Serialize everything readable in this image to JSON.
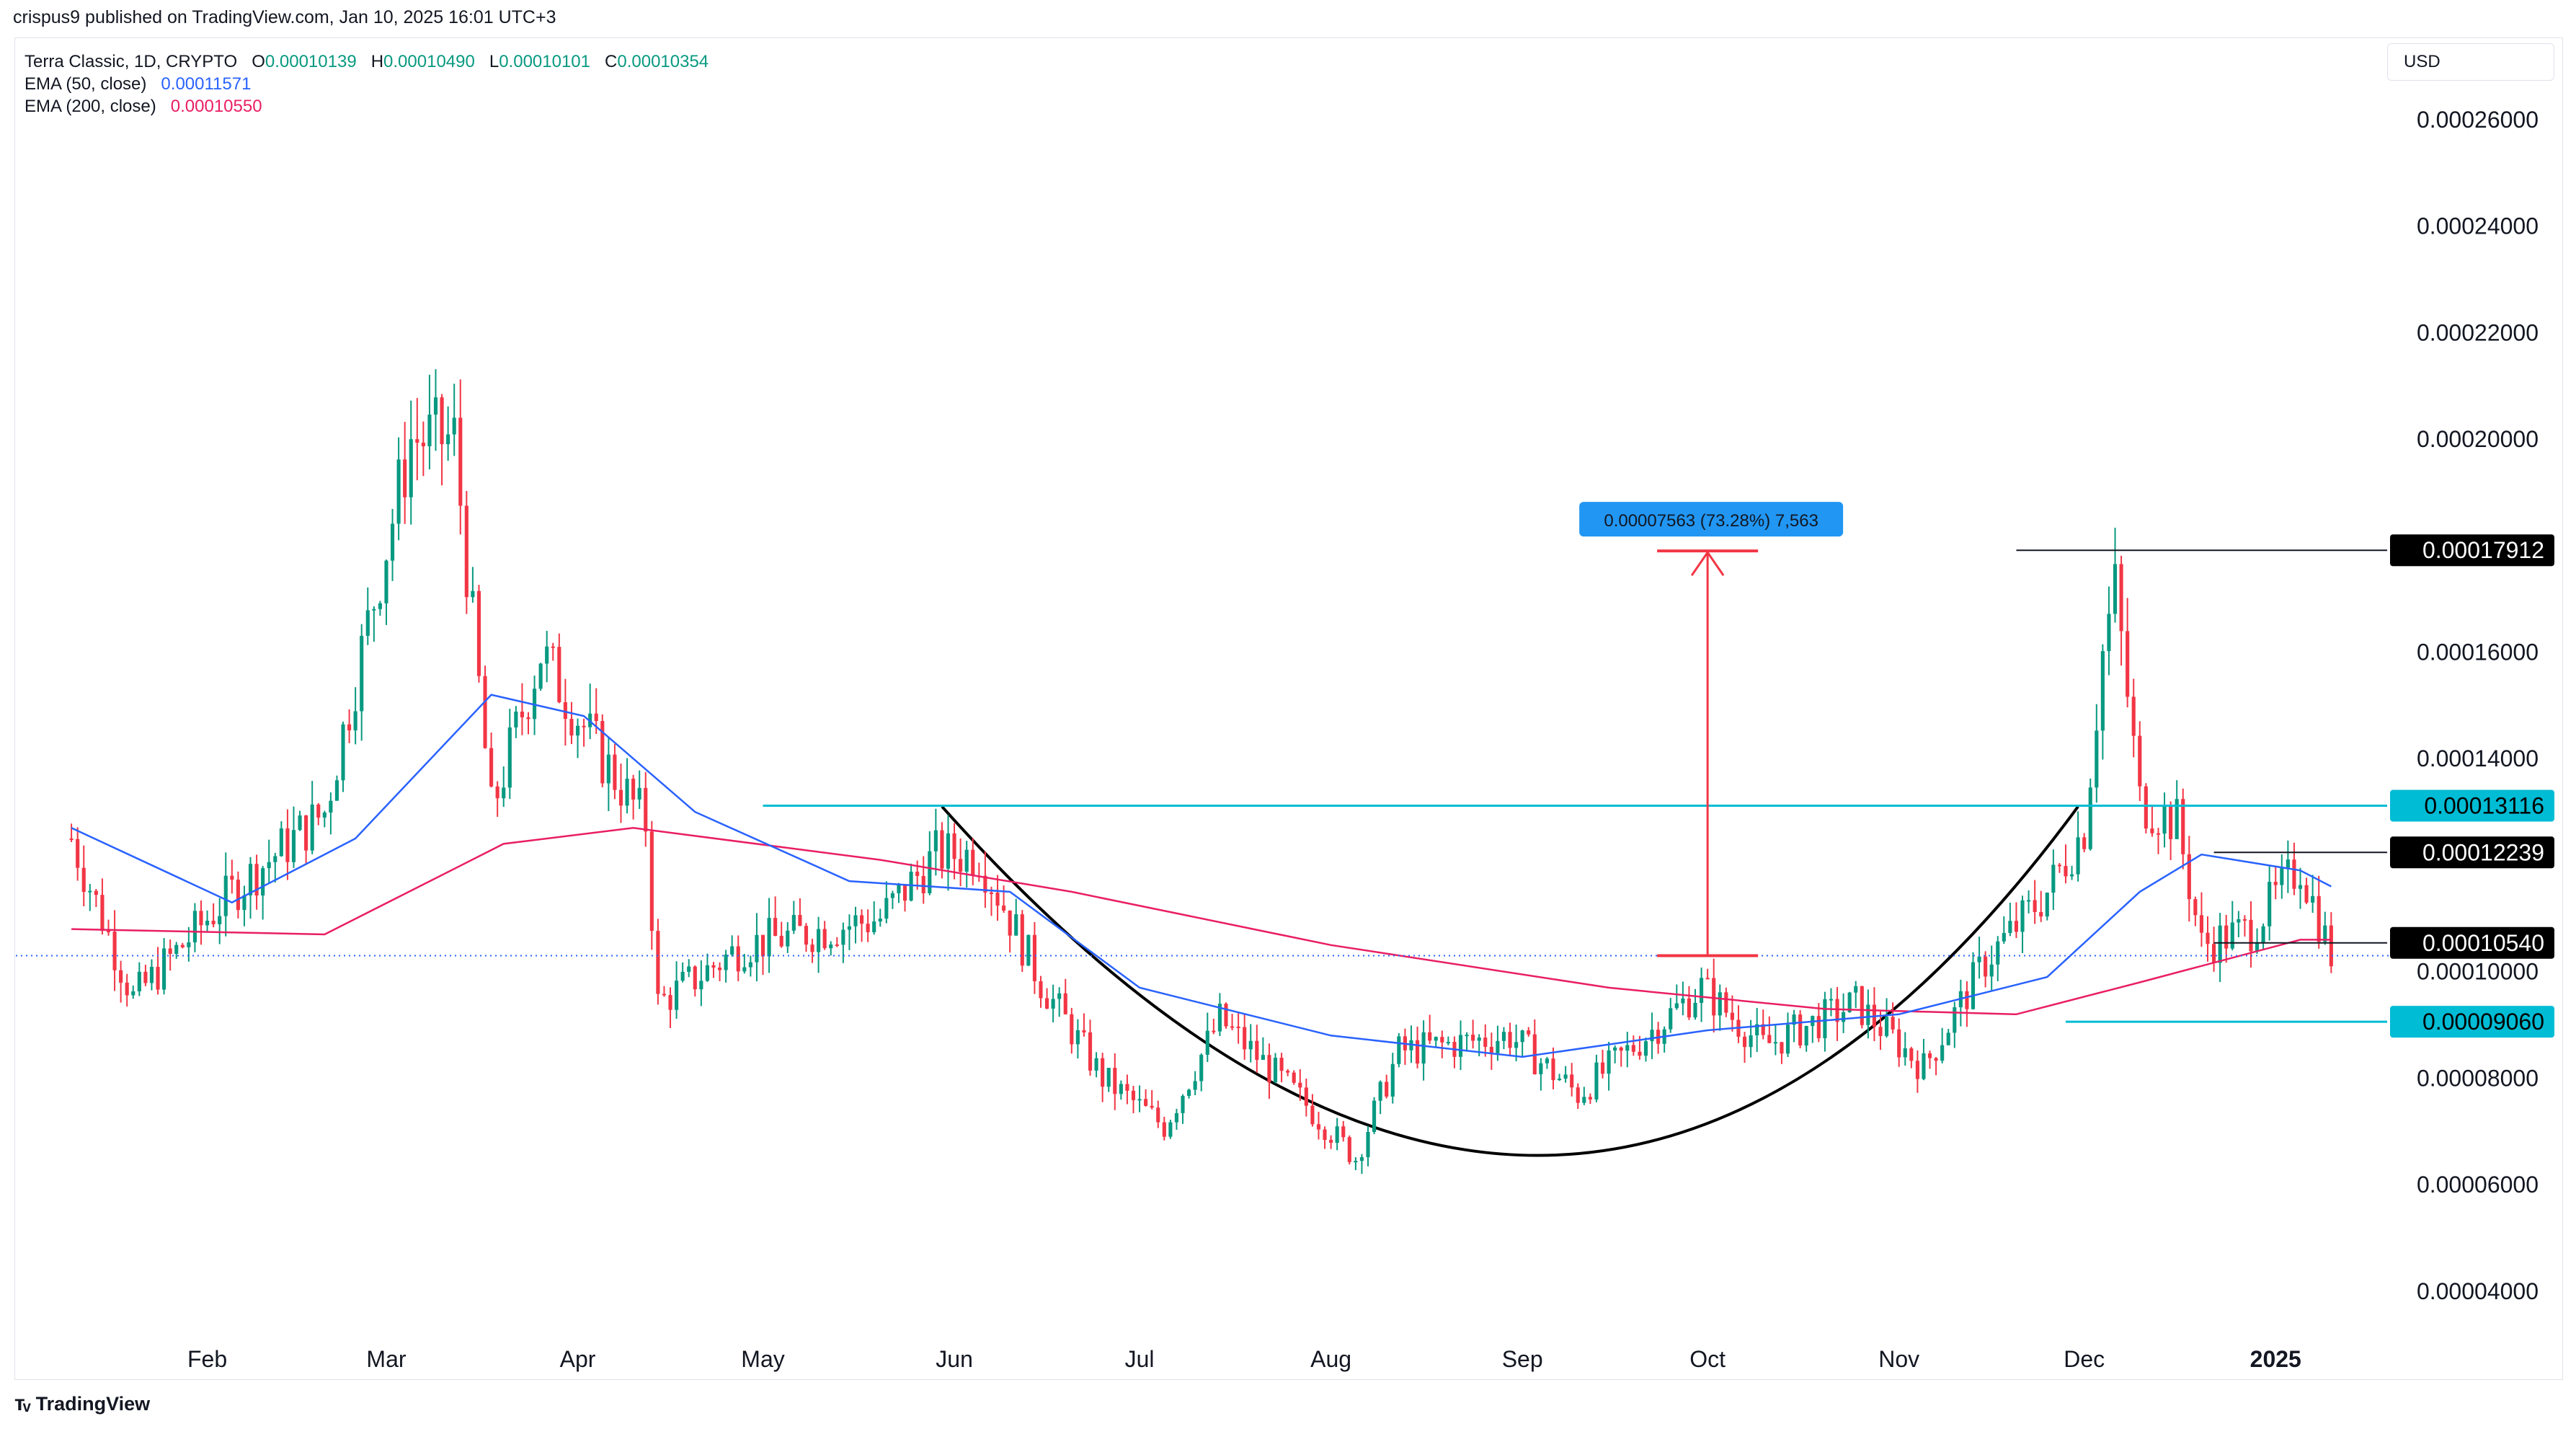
{
  "publisher": "crispus9 published on TradingView.com, Jan 10, 2025 16:01 UTC+3",
  "currency": "USD",
  "legend": {
    "symbol": "Terra Classic, 1D, CRYPTO",
    "o_label": "O",
    "o_value": "0.00010139",
    "h_label": "H",
    "h_value": "0.00010490",
    "l_label": "L",
    "l_value": "0.00010101",
    "c_label": "C",
    "c_value": "0.00010354",
    "ema50_label": "EMA (50, close)",
    "ema50_value": "0.00011571",
    "ema200_label": "EMA (200, close)",
    "ema200_value": "0.00010550"
  },
  "footer": {
    "brand": "TradingView",
    "logo_icon": "tradingview-logo-icon"
  },
  "colors": {
    "up": "#089981",
    "down": "#f23645",
    "ema50": "#2962ff",
    "ema200": "#e91e63",
    "teal": "#00bcd4",
    "measure": "#f23645",
    "measure_label": "#2196f3"
  },
  "chart_data": {
    "type": "candlestick",
    "x_ticks": [
      "Feb",
      "Mar",
      "Apr",
      "May",
      "Jun",
      "Jul",
      "Aug",
      "Sep",
      "Oct",
      "Nov",
      "Dec",
      "2025"
    ],
    "y_ticks": [
      "0.00026000",
      "0.00024000",
      "0.00022000",
      "0.00020000",
      "0.00016000",
      "0.00014000",
      "0.00010000",
      "0.00008000",
      "0.00006000",
      "0.00004000"
    ],
    "y_range": [
      3.2e-05,
      0.000275
    ],
    "ohlc_key_points": [
      [
        "2024-01-10",
        0.000125
      ],
      [
        "2024-01-20",
        9.5e-05
      ],
      [
        "2024-02-05",
        0.000115
      ],
      [
        "2024-02-20",
        0.00013
      ],
      [
        "2024-03-01",
        0.00018
      ],
      [
        "2024-03-05",
        0.0002
      ],
      [
        "2024-03-12",
        0.0002
      ],
      [
        "2024-03-18",
        0.00013
      ],
      [
        "2024-03-26",
        0.00016
      ],
      [
        "2024-04-05",
        0.00014
      ],
      [
        "2024-04-12",
        0.000128
      ],
      [
        "2024-04-14",
        9.4e-05
      ],
      [
        "2024-04-28",
        0.000105
      ],
      [
        "2024-05-20",
        0.00011
      ],
      [
        "2024-05-29",
        0.000122
      ],
      [
        "2024-06-05",
        0.000122
      ],
      [
        "2024-06-15",
        9.8e-05
      ],
      [
        "2024-06-25",
        8e-05
      ],
      [
        "2024-07-05",
        7.1e-05
      ],
      [
        "2024-07-14",
        9.1e-05
      ],
      [
        "2024-07-28",
        7.5e-05
      ],
      [
        "2024-08-05",
        6.5e-05
      ],
      [
        "2024-08-12",
        8.5e-05
      ],
      [
        "2024-08-30",
        8.8e-05
      ],
      [
        "2024-09-10",
        7.7e-05
      ],
      [
        "2024-09-30",
        9.7e-05
      ],
      [
        "2024-10-10",
        8.6e-05
      ],
      [
        "2024-10-25",
        9.4e-05
      ],
      [
        "2024-11-05",
        8.2e-05
      ],
      [
        "2024-11-15",
        0.000102
      ],
      [
        "2024-11-25",
        0.000115
      ],
      [
        "2024-12-01",
        0.000127
      ],
      [
        "2024-12-04",
        0.00016
      ],
      [
        "2024-12-06",
        0.000172
      ],
      [
        "2024-12-10",
        0.000132
      ],
      [
        "2024-12-16",
        0.000128
      ],
      [
        "2024-12-20",
        0.000105
      ],
      [
        "2024-12-28",
        0.000108
      ],
      [
        "2025-01-05",
        0.00012
      ],
      [
        "2025-01-10",
        0.000103
      ]
    ],
    "ema50": [
      [
        "2024-01-10",
        0.000127
      ],
      [
        "2024-02-05",
        0.000113
      ],
      [
        "2024-02-25",
        0.000125
      ],
      [
        "2024-03-18",
        0.000152
      ],
      [
        "2024-04-02",
        0.000148
      ],
      [
        "2024-04-20",
        0.00013
      ],
      [
        "2024-05-15",
        0.000117
      ],
      [
        "2024-06-10",
        0.000115
      ],
      [
        "2024-07-01",
        9.7e-05
      ],
      [
        "2024-08-01",
        8.8e-05
      ],
      [
        "2024-09-01",
        8.4e-05
      ],
      [
        "2024-10-01",
        8.9e-05
      ],
      [
        "2024-11-01",
        9.2e-05
      ],
      [
        "2024-11-25",
        9.9e-05
      ],
      [
        "2024-12-10",
        0.000115
      ],
      [
        "2024-12-20",
        0.000122
      ],
      [
        "2025-01-05",
        0.000119
      ],
      [
        "2025-01-10",
        0.000116
      ]
    ],
    "ema200": [
      [
        "2024-01-10",
        0.000108
      ],
      [
        "2024-02-20",
        0.000107
      ],
      [
        "2024-03-20",
        0.000124
      ],
      [
        "2024-04-10",
        0.000127
      ],
      [
        "2024-05-20",
        0.000121
      ],
      [
        "2024-06-20",
        0.000115
      ],
      [
        "2024-08-01",
        0.000105
      ],
      [
        "2024-09-15",
        9.7e-05
      ],
      [
        "2024-10-20",
        9.3e-05
      ],
      [
        "2024-11-20",
        9.2e-05
      ],
      [
        "2024-12-10",
        9.8e-05
      ],
      [
        "2025-01-05",
        0.000106
      ],
      [
        "2025-01-10",
        0.000106
      ]
    ],
    "price_levels": [
      {
        "value": 0.00017912,
        "label": "0.00017912",
        "style": "black"
      },
      {
        "value": 0.00013116,
        "label": "0.00013116",
        "style": "teal"
      },
      {
        "value": 0.00012239,
        "label": "0.00012239",
        "style": "black"
      },
      {
        "value": 0.0001054,
        "label": "0.00010540",
        "style": "black"
      },
      {
        "value": 9.06e-05,
        "label": "0.00009060",
        "style": "teal"
      }
    ],
    "current_price_level": 0.000103,
    "measurement": {
      "label": "0.00007563 (73.28%) 7,563",
      "from": 0.000103,
      "to": 0.000179
    },
    "annotations": [
      "cup-curve"
    ]
  }
}
